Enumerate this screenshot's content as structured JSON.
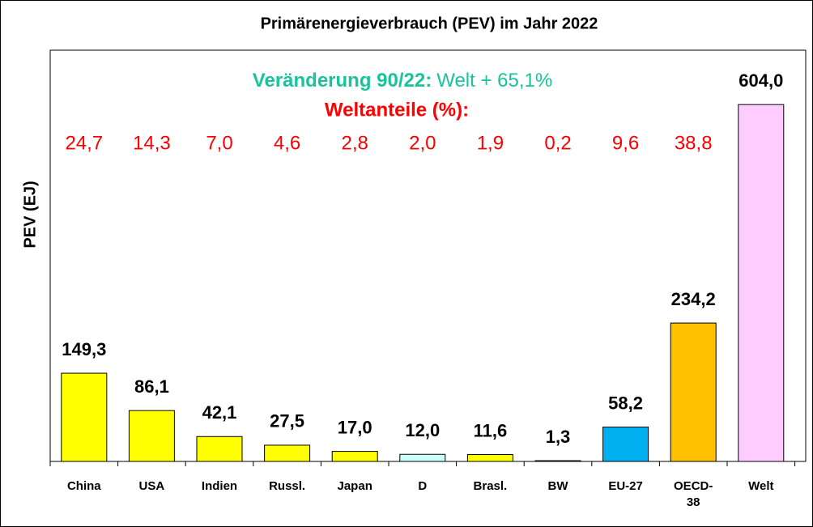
{
  "chart_data": {
    "type": "bar",
    "title": "Primärenergieverbrauch  (PEV) im Jahr 2022",
    "y_label": "PEV (EJ)",
    "annotations": {
      "change_label": "Veränderung 90/22:",
      "change_text": "Welt + 65,1%",
      "share_title": "Weltanteile (%):",
      "shares": [
        "24,7",
        "14,3",
        "7,0",
        "4,6",
        "2,8",
        "2,0",
        "1,9",
        "0,2",
        "9,6",
        "38,8"
      ]
    },
    "categories": [
      "China",
      "USA",
      "Indien",
      "Russl.",
      "Japan",
      "D",
      "Brasl.",
      "BW",
      "EU-27",
      "OECD-38",
      "Welt"
    ],
    "values": [
      149.3,
      86.1,
      42.1,
      27.5,
      17.0,
      12.0,
      11.6,
      1.3,
      58.2,
      234.2,
      604.0
    ],
    "value_labels": [
      "149,3",
      "86,1",
      "42,1",
      "27,5",
      "17,0",
      "12,0",
      "11,6",
      "1,3",
      "58,2",
      "234,2",
      "604,0"
    ],
    "colors": [
      "#ffff00",
      "#ffff00",
      "#ffff00",
      "#ffff00",
      "#ffff00",
      "#ccffff",
      "#ffff00",
      "#ffff00",
      "#00b0f0",
      "#ffc000",
      "#ffccff"
    ],
    "value_label_colors": [
      "#000000",
      "#000000",
      "#000000",
      "#000000",
      "#000000",
      "#000000",
      "#000000",
      "#000000",
      "#000000",
      "#000000",
      "#000000"
    ],
    "ylim": [
      0,
      696
    ]
  }
}
